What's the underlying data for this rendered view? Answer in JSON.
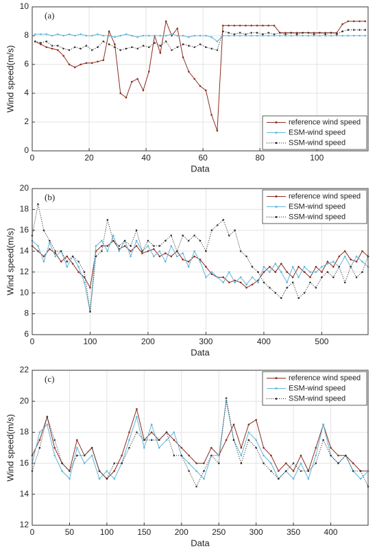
{
  "chart_data": [
    {
      "type": "line",
      "label": "(a)",
      "xlabel": "Data",
      "ylabel": "Wind speed(m/s)",
      "xlim": [
        0,
        118
      ],
      "ylim": [
        0,
        10
      ],
      "xticks": [
        0,
        20,
        40,
        60,
        80,
        100
      ],
      "yticks": [
        0,
        2,
        4,
        6,
        8,
        10
      ],
      "grid": true,
      "legend": "lower right",
      "x": [
        1,
        3,
        5,
        7,
        9,
        11,
        13,
        15,
        17,
        19,
        21,
        23,
        25,
        27,
        29,
        31,
        33,
        35,
        37,
        39,
        41,
        43,
        45,
        47,
        49,
        51,
        53,
        55,
        57,
        59,
        61,
        63,
        65,
        67,
        69,
        71,
        73,
        75,
        77,
        79,
        81,
        83,
        85,
        87,
        89,
        91,
        93,
        95,
        97,
        99,
        101,
        103,
        105,
        107,
        109,
        111,
        113,
        115,
        117
      ],
      "series": [
        {
          "name": "reference wind speed",
          "color": "#8b2a1e",
          "line_style": "solid",
          "values": [
            7.6,
            7.4,
            7.2,
            7.1,
            7.0,
            6.6,
            6.0,
            5.8,
            6.0,
            6.1,
            6.1,
            6.2,
            6.3,
            8.3,
            7.4,
            4.0,
            3.7,
            4.8,
            5.0,
            4.2,
            5.5,
            8.0,
            6.8,
            9.0,
            8.0,
            8.5,
            6.5,
            5.5,
            5.0,
            4.5,
            4.2,
            2.5,
            1.4,
            8.7,
            8.7,
            8.7,
            8.7,
            8.7,
            8.7,
            8.7,
            8.7,
            8.7,
            8.7,
            8.2,
            8.2,
            8.2,
            8.2,
            8.2,
            8.2,
            8.2,
            8.2,
            8.2,
            8.2,
            8.2,
            8.8,
            9.0,
            9.0,
            9.0,
            9.0
          ]
        },
        {
          "name": "ESM-wind speed",
          "color": "#5fb6d9",
          "line_style": "solid",
          "values": [
            8.1,
            8.1,
            8.1,
            8.0,
            8.1,
            8.0,
            8.1,
            8.0,
            8.1,
            8.0,
            8.0,
            8.1,
            8.0,
            8.0,
            7.9,
            8.0,
            8.1,
            8.0,
            7.9,
            8.0,
            8.0,
            8.0,
            8.0,
            8.0,
            8.1,
            8.0,
            8.0,
            7.9,
            8.0,
            8.0,
            8.0,
            7.9,
            7.6,
            8.0,
            8.0,
            8.0,
            8.0,
            8.0,
            8.0,
            8.0,
            8.0,
            8.0,
            8.0,
            8.0,
            8.0,
            8.0,
            8.0,
            8.0,
            8.0,
            8.0,
            8.0,
            8.0,
            8.0,
            8.0,
            8.0,
            8.0,
            8.0,
            8.0,
            8.0
          ]
        },
        {
          "name": "SSM-wind speed",
          "color": "#333333",
          "line_style": "dotted",
          "values": [
            7.6,
            7.5,
            7.6,
            7.3,
            7.3,
            7.1,
            7.0,
            7.2,
            7.1,
            7.3,
            7.0,
            7.2,
            7.6,
            7.4,
            7.2,
            7.0,
            7.1,
            7.2,
            7.1,
            7.3,
            7.2,
            7.5,
            7.3,
            7.6,
            7.0,
            7.2,
            7.4,
            7.3,
            7.2,
            7.4,
            7.2,
            7.1,
            7.0,
            8.3,
            8.2,
            8.1,
            8.2,
            8.1,
            8.2,
            8.2,
            8.1,
            8.2,
            8.1,
            8.2,
            8.1,
            8.2,
            8.1,
            8.2,
            8.2,
            8.1,
            8.2,
            8.1,
            8.2,
            8.1,
            8.3,
            8.4,
            8.4,
            8.4,
            8.4
          ]
        }
      ]
    },
    {
      "type": "line",
      "label": "(b)",
      "xlabel": "Data",
      "ylabel": "Wind speed(m/s)",
      "xlim": [
        0,
        580
      ],
      "ylim": [
        6,
        20
      ],
      "xticks": [
        0,
        100,
        200,
        300,
        400,
        500
      ],
      "yticks": [
        6,
        8,
        10,
        12,
        14,
        16,
        18,
        20
      ],
      "grid": true,
      "legend": "upper right",
      "x": [
        0,
        10,
        20,
        30,
        40,
        50,
        60,
        70,
        80,
        90,
        100,
        110,
        120,
        130,
        140,
        150,
        160,
        170,
        180,
        190,
        200,
        210,
        220,
        230,
        240,
        250,
        260,
        270,
        280,
        290,
        300,
        310,
        320,
        330,
        340,
        350,
        360,
        370,
        380,
        390,
        400,
        410,
        420,
        430,
        440,
        450,
        460,
        470,
        480,
        490,
        500,
        510,
        520,
        530,
        540,
        550,
        560,
        570,
        580
      ],
      "series": [
        {
          "name": "reference wind speed",
          "color": "#8b2a1e",
          "line_style": "solid",
          "values": [
            14.5,
            14.0,
            13.5,
            14.2,
            13.8,
            13.0,
            13.5,
            12.8,
            12.0,
            11.5,
            10.5,
            14.0,
            14.5,
            14.5,
            15.0,
            14.2,
            14.5,
            14.0,
            14.5,
            13.8,
            14.0,
            14.2,
            13.5,
            13.8,
            13.5,
            14.0,
            13.2,
            13.0,
            13.5,
            13.2,
            12.5,
            11.8,
            11.5,
            11.5,
            11.0,
            11.2,
            11.0,
            10.5,
            10.8,
            11.2,
            12.0,
            12.5,
            12.0,
            12.8,
            12.0,
            11.5,
            12.5,
            12.0,
            11.5,
            12.5,
            12.0,
            13.0,
            12.5,
            13.5,
            14.0,
            13.2,
            13.0,
            14.0,
            13.5
          ]
        },
        {
          "name": "ESM-wind speed",
          "color": "#5fb6d9",
          "line_style": "solid",
          "values": [
            15.0,
            14.5,
            13.0,
            14.8,
            13.5,
            14.0,
            12.5,
            13.5,
            12.5,
            11.0,
            8.2,
            14.5,
            15.0,
            14.0,
            15.5,
            14.0,
            15.0,
            13.5,
            15.0,
            14.0,
            14.5,
            13.5,
            14.0,
            13.0,
            14.5,
            13.5,
            13.8,
            12.5,
            14.0,
            13.0,
            11.5,
            12.0,
            11.5,
            11.0,
            12.0,
            11.0,
            11.5,
            10.8,
            11.5,
            11.0,
            12.5,
            12.0,
            12.8,
            12.0,
            11.0,
            12.5,
            11.5,
            12.5,
            12.0,
            12.0,
            12.5,
            12.8,
            13.0,
            12.5,
            13.5,
            12.5,
            13.5,
            13.0,
            12.5
          ]
        },
        {
          "name": "SSM-wind speed",
          "color": "#333333",
          "line_style": "dotted",
          "values": [
            15.5,
            18.5,
            16.0,
            15.0,
            14.0,
            14.0,
            13.0,
            13.5,
            13.0,
            12.0,
            8.2,
            13.5,
            14.0,
            17.0,
            15.0,
            14.5,
            15.0,
            14.5,
            16.0,
            14.0,
            15.0,
            14.5,
            14.5,
            15.0,
            15.5,
            14.0,
            15.5,
            15.0,
            15.5,
            15.0,
            14.0,
            16.0,
            16.5,
            17.0,
            15.5,
            16.0,
            14.0,
            13.5,
            12.5,
            12.0,
            11.0,
            10.5,
            10.0,
            9.5,
            10.5,
            11.0,
            9.5,
            10.0,
            11.0,
            10.5,
            11.5,
            12.0,
            11.5,
            12.5,
            11.0,
            12.5,
            11.5,
            12.0,
            13.5
          ]
        }
      ]
    },
    {
      "type": "line",
      "label": "(c)",
      "xlabel": "Data",
      "ylabel": "Wind speed(m/s)",
      "xlim": [
        0,
        450
      ],
      "ylim": [
        12,
        22
      ],
      "xticks": [
        0,
        50,
        100,
        150,
        200,
        250,
        300,
        350,
        400
      ],
      "yticks": [
        12,
        14,
        16,
        18,
        20,
        22
      ],
      "grid": true,
      "legend": "upper right",
      "x": [
        0,
        10,
        20,
        30,
        40,
        50,
        60,
        70,
        80,
        90,
        100,
        110,
        120,
        130,
        140,
        150,
        160,
        170,
        180,
        190,
        200,
        210,
        220,
        230,
        240,
        250,
        260,
        270,
        280,
        290,
        300,
        310,
        320,
        330,
        340,
        350,
        360,
        370,
        380,
        390,
        400,
        410,
        420,
        430,
        440,
        450
      ],
      "series": [
        {
          "name": "reference wind speed",
          "color": "#8b2a1e",
          "line_style": "solid",
          "values": [
            16.5,
            17.5,
            19.0,
            17.0,
            16.0,
            15.5,
            17.5,
            16.5,
            17.0,
            15.5,
            15.0,
            15.5,
            16.5,
            18.0,
            19.5,
            17.5,
            18.0,
            17.5,
            18.0,
            17.5,
            17.0,
            16.5,
            16.0,
            16.0,
            17.0,
            16.5,
            17.5,
            18.5,
            17.0,
            18.5,
            18.8,
            17.0,
            16.5,
            15.5,
            16.0,
            15.5,
            16.5,
            15.5,
            17.0,
            18.5,
            17.0,
            16.5,
            16.5,
            16.0,
            15.5,
            15.5
          ]
        },
        {
          "name": "ESM-wind speed",
          "color": "#5fb6d9",
          "line_style": "solid",
          "values": [
            16.0,
            18.0,
            18.5,
            16.5,
            15.5,
            15.0,
            17.0,
            16.0,
            16.5,
            15.0,
            15.5,
            15.0,
            16.0,
            17.5,
            19.0,
            17.0,
            18.5,
            17.0,
            17.5,
            18.0,
            16.5,
            16.0,
            15.5,
            15.0,
            16.5,
            16.5,
            20.0,
            17.5,
            16.5,
            18.0,
            17.5,
            16.5,
            16.0,
            15.0,
            15.5,
            15.0,
            16.0,
            15.0,
            16.5,
            18.5,
            16.5,
            16.0,
            16.5,
            15.5,
            15.0,
            15.5
          ]
        },
        {
          "name": "SSM-wind speed",
          "color": "#333333",
          "line_style": "dotted",
          "values": [
            15.5,
            17.0,
            19.0,
            17.5,
            16.0,
            15.5,
            16.5,
            16.5,
            17.0,
            15.5,
            15.0,
            16.0,
            16.0,
            17.0,
            18.0,
            17.5,
            17.5,
            17.5,
            18.0,
            16.5,
            16.5,
            15.5,
            14.5,
            15.5,
            16.5,
            16.0,
            20.2,
            17.5,
            16.0,
            17.5,
            17.0,
            16.0,
            15.5,
            15.0,
            15.5,
            16.0,
            15.5,
            15.5,
            16.0,
            17.5,
            16.5,
            16.0,
            16.5,
            15.5,
            15.5,
            14.5
          ]
        }
      ]
    }
  ]
}
